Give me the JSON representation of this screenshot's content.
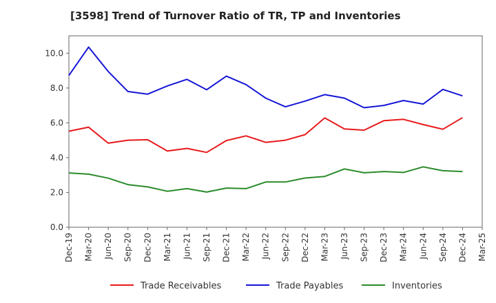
{
  "chart_data": {
    "type": "line",
    "title": "[3598]  Trend of Turnover Ratio of TR, TP and Inventories",
    "xlabel": "",
    "ylabel": "",
    "ylim": [
      0,
      11
    ],
    "yticks": [
      "0.0",
      "2.0",
      "4.0",
      "6.0",
      "8.0",
      "10.0"
    ],
    "grid": true,
    "legend_position": "bottom",
    "x": [
      "Dec-19",
      "Mar-20",
      "Jun-20",
      "Sep-20",
      "Dec-20",
      "Mar-21",
      "Jun-21",
      "Sep-21",
      "Dec-21",
      "Mar-22",
      "Jun-22",
      "Sep-22",
      "Dec-22",
      "Mar-23",
      "Jun-23",
      "Sep-23",
      "Dec-23",
      "Mar-24",
      "Jun-24",
      "Sep-24",
      "Dec-24",
      "Mar-25"
    ],
    "series": [
      {
        "name": "Trade Receivables",
        "color": "#e8191b",
        "values": [
          5.52,
          5.75,
          4.83,
          5.0,
          5.03,
          4.38,
          4.53,
          4.3,
          4.98,
          5.25,
          4.88,
          5.0,
          5.32,
          6.28,
          5.65,
          5.58,
          6.12,
          6.2,
          5.9,
          5.63,
          6.3,
          null
        ]
      },
      {
        "name": "Trade Payables",
        "color": "#1515d6",
        "values": [
          8.72,
          10.35,
          8.95,
          7.8,
          7.65,
          8.12,
          8.5,
          7.9,
          8.68,
          8.2,
          7.42,
          6.92,
          7.25,
          7.62,
          7.42,
          6.87,
          7.0,
          7.28,
          7.08,
          7.92,
          7.55,
          null
        ]
      },
      {
        "name": "Inventories",
        "color": "#2a8a2a",
        "values": [
          3.12,
          3.05,
          2.82,
          2.45,
          2.32,
          2.07,
          2.22,
          2.02,
          2.25,
          2.22,
          2.6,
          2.6,
          2.83,
          2.92,
          3.35,
          3.13,
          3.2,
          3.15,
          3.47,
          3.25,
          3.2,
          null
        ]
      }
    ]
  }
}
